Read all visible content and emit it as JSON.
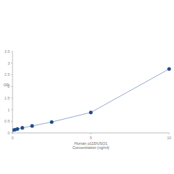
{
  "chart_data": {
    "type": "line",
    "x_label": [
      "Human p115/USO1",
      "Concentration (ng/ml)"
    ],
    "y_label": "OD",
    "x": [
      0,
      0.156,
      0.312,
      0.625,
      1.25,
      2.5,
      5,
      10
    ],
    "values": [
      0.12,
      0.14,
      0.17,
      0.22,
      0.3,
      0.47,
      0.88,
      2.75
    ],
    "color": "#1f4e8c",
    "marker": "circle",
    "line_style": "solid",
    "xlim": [
      0,
      10
    ],
    "xticks": [
      0,
      5,
      10
    ],
    "ylim": [
      0,
      3.5
    ],
    "yticks": [
      0,
      0.5,
      1,
      1.5,
      2,
      2.5,
      3,
      3.5
    ],
    "grid": false
  }
}
